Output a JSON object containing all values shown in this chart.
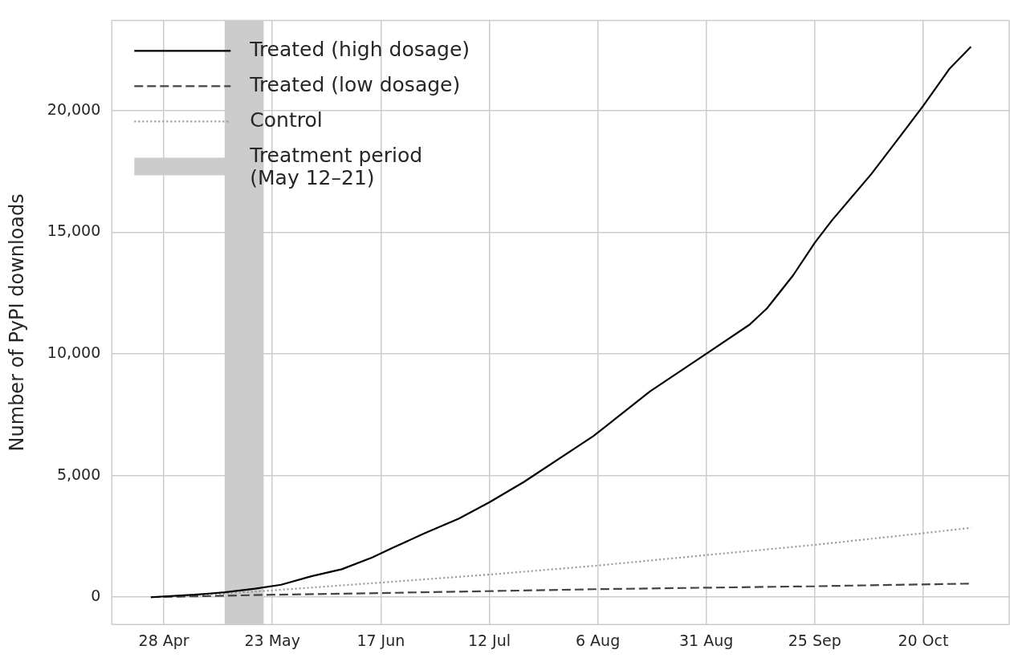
{
  "chart_data": {
    "type": "line",
    "ylabel": "Number of PyPI downloads",
    "xlim": [
      "--04-16",
      "--11-09"
    ],
    "ylim": [
      -1120,
      23700
    ],
    "xticks": [
      {
        "value": "--04-28",
        "label": "28 Apr"
      },
      {
        "value": "--05-23",
        "label": "23 May"
      },
      {
        "value": "--06-17",
        "label": "17 Jun"
      },
      {
        "value": "--07-12",
        "label": "12 Jul"
      },
      {
        "value": "--08-06",
        "label": "6 Aug"
      },
      {
        "value": "--08-31",
        "label": "31 Aug"
      },
      {
        "value": "--09-25",
        "label": "25 Sep"
      },
      {
        "value": "--10-20",
        "label": "20 Oct"
      }
    ],
    "yticks": [
      {
        "value": 0,
        "label": "0"
      },
      {
        "value": 5000,
        "label": "5,000"
      },
      {
        "value": 10000,
        "label": "10,000"
      },
      {
        "value": 15000,
        "label": "15,000"
      },
      {
        "value": 20000,
        "label": "20,000"
      }
    ],
    "grid": true,
    "legend": "top left",
    "marker": "none",
    "series": [
      {
        "name": "Treated (high dosage)",
        "color": "#000000",
        "line_style": "solid",
        "x": [
          "--04-25",
          "--05-05",
          "--05-12",
          "--05-19",
          "--05-25",
          "--06-01",
          "--06-08",
          "--06-15",
          "--06-20",
          "--06-27",
          "--07-05",
          "--07-12",
          "--07-20",
          "--08-05",
          "--08-18",
          "--08-31",
          "--09-10",
          "--09-14",
          "--09-20",
          "--09-25",
          "--09-29",
          "--10-08",
          "--10-15",
          "--10-20",
          "--10-26",
          "--10-31"
        ],
        "values": [
          0,
          100,
          200,
          350,
          510,
          860,
          1150,
          1630,
          2050,
          2620,
          3230,
          3900,
          4740,
          6620,
          8450,
          10000,
          11200,
          11870,
          13220,
          14560,
          15490,
          17380,
          19010,
          20190,
          21700,
          22620
        ]
      },
      {
        "name": "Treated (low dosage)",
        "color": "#444444",
        "line_style": "dashed",
        "x": [
          "--04-25",
          "--05-23",
          "--06-17",
          "--08-06",
          "--09-25",
          "--10-31"
        ],
        "values": [
          0,
          100,
          170,
          330,
          450,
          560
        ]
      },
      {
        "name": "Control",
        "color": "#999999",
        "line_style": "dotted",
        "x": [
          "--04-25",
          "--05-12",
          "--05-23",
          "--06-17",
          "--07-12",
          "--08-06",
          "--08-31",
          "--09-25",
          "--10-20",
          "--10-31"
        ],
        "values": [
          0,
          150,
          280,
          600,
          930,
          1300,
          1730,
          2150,
          2630,
          2850
        ]
      }
    ],
    "bands": [
      {
        "axis": "x",
        "from": "--05-12",
        "to": "--05-21",
        "label": "Treatment period (May 12–21)",
        "color": "#cccccc"
      }
    ]
  }
}
